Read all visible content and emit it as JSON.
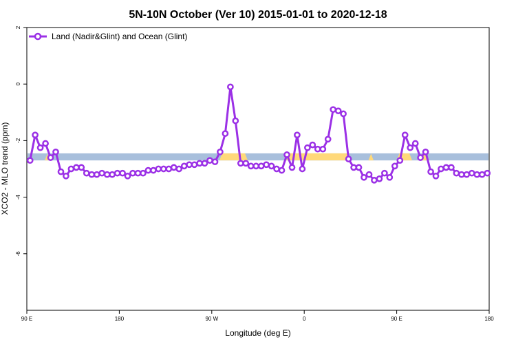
{
  "chart_data": {
    "type": "line",
    "title": "5N-10N October (Ver 10)   2015-01-01 to 2020-12-18",
    "xlabel": "Longitude (deg E)",
    "ylabel": "XCO2 - MLO trend (ppm)",
    "xlim": [
      90,
      450
    ],
    "ylim": [
      -8,
      2
    ],
    "x_ticks": [
      {
        "value": 90,
        "label": "90 E"
      },
      {
        "value": 162,
        "label": "180"
      },
      {
        "value": 234,
        "label": "90 W"
      },
      {
        "value": 306,
        "label": "0"
      },
      {
        "value": 378,
        "label": "90 E"
      },
      {
        "value": 450,
        "label": "180"
      }
    ],
    "y_ticks": [
      {
        "value": 2,
        "label": "2"
      },
      {
        "value": 0,
        "label": "0"
      },
      {
        "value": -2,
        "label": "-2"
      },
      {
        "value": -4,
        "label": "-4"
      },
      {
        "value": -6,
        "label": "-6"
      }
    ],
    "legend_position": "top-left",
    "band": {
      "ymin": -2.7,
      "ymax": -2.45,
      "color": "#a8bfdc",
      "overlay_color": "#ffd97a"
    },
    "series": [
      {
        "name": "Land (Nadir&Glint) and Ocean (Glint)",
        "color": "#9b30e6",
        "x": [
          92.5,
          96.5,
          100.5,
          104.5,
          108.5,
          112.5,
          116.5,
          120.5,
          124.5,
          128.5,
          132.5,
          136.5,
          140.5,
          144.5,
          148.5,
          152.5,
          156.5,
          160.5,
          164.5,
          168.5,
          172.5,
          176.5,
          180.5,
          184.5,
          188.5,
          192.5,
          196.5,
          200.5,
          204.5,
          208.5,
          212.5,
          216.5,
          220.5,
          224.5,
          228.5,
          232.5,
          236.5,
          240.5,
          244.5,
          248.5,
          252.5,
          256.5,
          260.5,
          264.5,
          268.5,
          272.5,
          276.5,
          280.5,
          284.5,
          288.5,
          292.5,
          296.5,
          300.5,
          304.5,
          308.5,
          312.5,
          316.5,
          320.5,
          324.5,
          328.5,
          332.5,
          336.5,
          340.5,
          344.5,
          348.5,
          352.5,
          356.5,
          360.5,
          364.5,
          368.5,
          372.5,
          376.5,
          380.5,
          384.5,
          388.5,
          392.5,
          396.5,
          400.5,
          404.5,
          408.5,
          412.5,
          416.5,
          420.5,
          424.5,
          428.5,
          432.5,
          436.5,
          440.5,
          444.5,
          448.5
        ],
        "y": [
          -2.7,
          -1.8,
          -2.25,
          -2.1,
          -2.6,
          -2.4,
          -3.1,
          -3.25,
          -3.0,
          -2.95,
          -2.95,
          -3.15,
          -3.2,
          -3.2,
          -3.15,
          -3.2,
          -3.2,
          -3.15,
          -3.15,
          -3.25,
          -3.15,
          -3.15,
          -3.15,
          -3.05,
          -3.05,
          -3.0,
          -3.0,
          -3.0,
          -2.95,
          -3.0,
          -2.9,
          -2.85,
          -2.85,
          -2.8,
          -2.8,
          -2.7,
          -2.75,
          -2.4,
          -1.75,
          -0.1,
          -1.3,
          -2.8,
          -2.8,
          -2.9,
          -2.9,
          -2.9,
          -2.85,
          -2.9,
          -3.0,
          -3.05,
          -2.5,
          -2.95,
          -1.8,
          -3.0,
          -2.25,
          -2.15,
          -2.3,
          -2.3,
          -1.95,
          -0.9,
          -0.95,
          -1.05,
          -2.65,
          -2.95,
          -2.95,
          -3.3,
          -3.2,
          -3.4,
          -3.35,
          -3.15,
          -3.3,
          -2.9,
          -2.7,
          -1.8,
          -2.25,
          -2.1,
          -2.6,
          -2.4,
          -3.1,
          -3.25,
          -3.0,
          -2.95,
          -2.95,
          -3.15,
          -3.2,
          -3.2,
          -3.15,
          -3.2,
          -3.2,
          -3.15
        ]
      }
    ]
  }
}
